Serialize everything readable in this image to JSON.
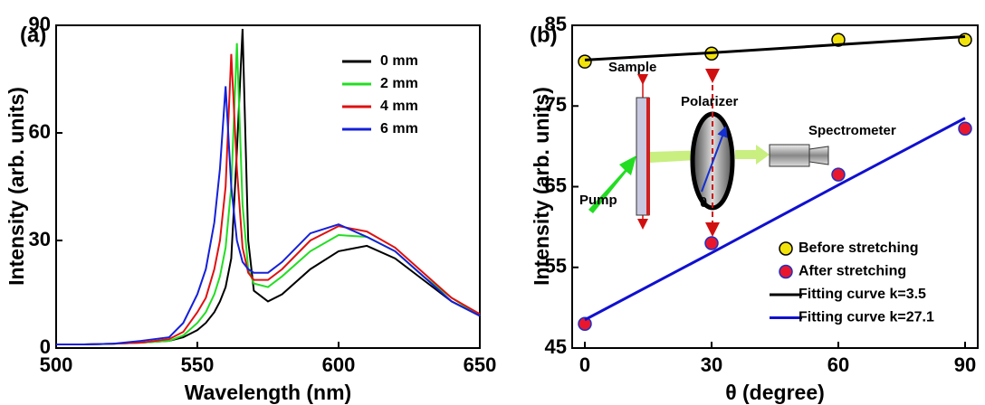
{
  "chart_data": [
    {
      "type": "line",
      "label": "(a)",
      "xlabel": "Wavelength (nm)",
      "ylabel": "Intensity (arb. units)",
      "xlim": [
        500,
        650
      ],
      "ylim": [
        0,
        90
      ],
      "xticks": [
        500,
        550,
        600,
        650
      ],
      "yticks": [
        0,
        30,
        60,
        90
      ],
      "x": [
        500,
        510,
        520,
        530,
        540,
        545,
        550,
        553,
        556,
        558,
        560,
        562,
        564,
        566,
        568,
        570,
        575,
        580,
        590,
        600,
        610,
        620,
        630,
        640,
        650
      ],
      "series": [
        {
          "name": "0 mm",
          "color": "#000000",
          "values": [
            1,
            1,
            1.2,
            1.5,
            2,
            3,
            5,
            7,
            10,
            13,
            17,
            25,
            55,
            89,
            30,
            16,
            13,
            15,
            22,
            27,
            28.5,
            25,
            19,
            13,
            9
          ]
        },
        {
          "name": "2 mm",
          "color": "#22dd22",
          "values": [
            1,
            1,
            1.2,
            1.5,
            2,
            3.5,
            7,
            10,
            15,
            20,
            28,
            45,
            85,
            40,
            22,
            18,
            17,
            20,
            27,
            31.5,
            31,
            27,
            20,
            14,
            9
          ]
        },
        {
          "name": "4 mm",
          "color": "#e01010",
          "values": [
            1,
            1,
            1.2,
            1.5,
            2.5,
            4.5,
            10,
            14,
            22,
            30,
            45,
            82,
            50,
            28,
            21,
            19,
            19,
            22,
            30,
            34,
            32.5,
            28,
            21,
            14,
            9.5
          ]
        },
        {
          "name": "6 mm",
          "color": "#1520d8",
          "values": [
            1,
            1,
            1.2,
            2,
            3,
            7,
            15,
            22,
            35,
            50,
            73,
            45,
            30,
            24,
            22,
            21,
            21,
            24,
            32,
            34.5,
            31,
            27,
            20,
            13,
            9
          ]
        }
      ]
    },
    {
      "type": "scatter",
      "label": "(b)",
      "xlabel": "θ (degree)",
      "ylabel": "Intensity (arb. units)",
      "xlim": [
        -3,
        93
      ],
      "ylim": [
        45,
        85
      ],
      "xticks": [
        0,
        30,
        60,
        90
      ],
      "yticks": [
        45,
        55,
        65,
        75,
        85
      ],
      "x": [
        0,
        30,
        60,
        90
      ],
      "series": [
        {
          "name": "Before stretching",
          "mode": "markers",
          "color": "#f2e20c",
          "edge_color": "#000000",
          "values": [
            80.5,
            81.5,
            83.2,
            83.2
          ]
        },
        {
          "name": "After stretching",
          "mode": "markers",
          "color": "#e8172e",
          "edge_color": "#2030c0",
          "values": [
            48,
            58,
            66.5,
            72.2
          ]
        },
        {
          "name": "Fitting curve k=3.5",
          "mode": "line",
          "color": "#000000",
          "values": [
            80.7,
            81.6,
            82.6,
            83.6
          ]
        },
        {
          "name": "Fitting curve k=27.1",
          "mode": "line",
          "color": "#1010d0",
          "values": [
            48.5,
            56.8,
            65.2,
            73.5
          ]
        }
      ],
      "annotations": [
        "Sample",
        "Polarizer",
        "Spectrometer",
        "Pump",
        "θ"
      ]
    }
  ]
}
